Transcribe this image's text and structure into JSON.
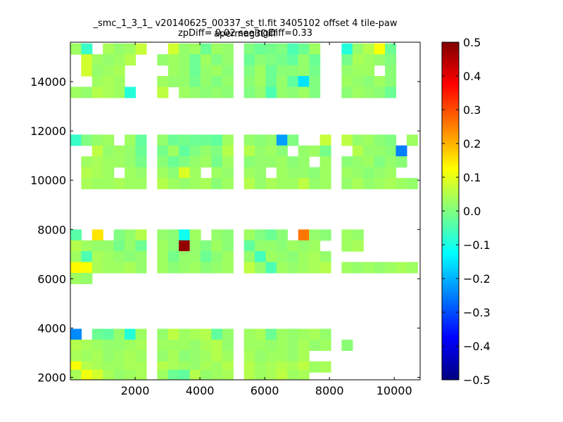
{
  "chart_data": {
    "type": "heatmap",
    "title": "_smc_1_3_1_ v20140625_00337_st_tl.fit 3405102 offset 4 tile-paw apermag3Diff",
    "subtitle": "zpDiff= 0.02 seeingDiff=0.33",
    "xlabel": "",
    "ylabel": "",
    "xlim": [
      0,
      10800
    ],
    "ylim": [
      1900,
      15600
    ],
    "xticks": [
      2000,
      4000,
      6000,
      8000,
      10000
    ],
    "yticks": [
      2000,
      4000,
      6000,
      8000,
      10000,
      12000,
      14000
    ],
    "cell_size": [
      335,
      440
    ],
    "colormap": "jet",
    "colorbar": {
      "range": [
        -0.5,
        0.5
      ],
      "ticks": [
        "0.5",
        "0.4",
        "0.3",
        "0.2",
        "0.1",
        "0.0",
        "−0.1",
        "−0.2",
        "−0.3",
        "−0.4",
        "−0.5"
      ],
      "tick_values": [
        0.5,
        0.4,
        0.3,
        0.2,
        0.1,
        0.0,
        -0.1,
        -0.2,
        -0.3,
        -0.4,
        -0.5
      ]
    },
    "column_centers": [
      167,
      502,
      837,
      1172,
      1507,
      1842,
      2177,
      2847,
      3182,
      3517,
      3852,
      4187,
      4522,
      4857,
      5527,
      5862,
      6197,
      6532,
      6867,
      7202,
      7537,
      7872,
      8542,
      8877,
      9212,
      9547,
      9882,
      10217,
      10552
    ],
    "band_row_centers": [
      [
        15330,
        14890,
        14450,
        14010,
        13570
      ],
      [
        11630,
        11190,
        10750,
        10310,
        9870
      ],
      [
        7780,
        7340,
        6900,
        6460,
        6020,
        5580
      ],
      [
        3750,
        3310,
        2870,
        2430,
        2090
      ]
    ],
    "bands": [
      [
        [
          0.03,
          -0.07,
          null,
          0.04,
          0.02,
          0.03,
          0.07,
          null,
          0.08,
          0.02,
          0.03,
          -0.02,
          0.03,
          0.02,
          0.0,
          -0.02,
          -0.01,
          0.0,
          -0.05,
          -0.02,
          0.03,
          null,
          -0.09,
          0.02,
          0.05,
          0.12,
          -0.02
        ],
        [
          null,
          0.08,
          0.03,
          0.02,
          0.03,
          0.05,
          null,
          0.02,
          0.03,
          0.02,
          -0.02,
          0.03,
          0.0,
          0.02,
          -0.02,
          0.01,
          0.0,
          -0.01,
          -0.03,
          0.02,
          -0.02,
          null,
          -0.01,
          0.04,
          0.03,
          0.02,
          0.0
        ],
        [
          null,
          0.08,
          0.02,
          0.03,
          0.04,
          null,
          null,
          null,
          0.03,
          0.02,
          -0.02,
          0.02,
          0.03,
          0.01,
          0.0,
          0.03,
          -0.02,
          0.01,
          0.01,
          0.02,
          -0.01,
          null,
          0.02,
          0.03,
          0.03,
          null,
          0.01
        ],
        [
          null,
          null,
          0.03,
          0.04,
          0.03,
          null,
          null,
          0.03,
          0.02,
          0.02,
          -0.01,
          0.02,
          0.0,
          0.02,
          0.01,
          0.03,
          -0.02,
          0.02,
          -0.03,
          -0.15,
          0.0,
          null,
          0.03,
          0.02,
          0.01,
          0.03,
          0.01
        ],
        [
          0.03,
          0.02,
          0.05,
          0.04,
          0.03,
          -0.09,
          null,
          0.06,
          null,
          0.03,
          0.02,
          0.01,
          0.02,
          0.01,
          0.0,
          0.02,
          -0.05,
          0.02,
          0.01,
          0.03,
          0.0,
          null,
          0.01,
          0.03,
          0.02,
          0.01,
          -0.02
        ]
      ],
      [
        [
          -0.07,
          0.0,
          0.02,
          0.03,
          null,
          0.03,
          -0.03,
          0.02,
          -0.02,
          -0.01,
          -0.02,
          -0.02,
          -0.03,
          0.03,
          0.02,
          0.01,
          0.02,
          -0.22,
          0.0,
          null,
          null,
          0.07,
          0.06,
          0.02,
          0.03,
          0.01,
          0.0,
          null,
          0.03
        ],
        [
          null,
          null,
          0.06,
          0.02,
          0.03,
          0.02,
          -0.02,
          -0.01,
          0.03,
          -0.03,
          0.0,
          0.02,
          0.0,
          0.05,
          0.05,
          0.02,
          0.03,
          0.01,
          null,
          0.02,
          0.03,
          -0.01,
          null,
          0.05,
          0.02,
          0.02,
          0.01,
          -0.25
        ],
        [
          null,
          0.03,
          0.04,
          0.03,
          0.03,
          0.02,
          -0.01,
          0.01,
          -0.02,
          0.0,
          0.02,
          0.03,
          -0.01,
          0.03,
          0.01,
          0.02,
          0.02,
          0.03,
          0.01,
          0.02,
          null,
          0.03,
          0.01,
          0.02,
          0.03,
          0.0,
          0.02,
          0.01
        ],
        [
          null,
          0.05,
          0.04,
          0.03,
          null,
          0.03,
          0.02,
          0.03,
          0.01,
          0.09,
          0.03,
          null,
          0.03,
          0.02,
          0.03,
          0.02,
          null,
          0.03,
          0.02,
          0.02,
          0.01,
          0.03,
          0.03,
          0.02,
          0.01,
          0.02,
          0.03
        ],
        [
          null,
          0.04,
          0.03,
          0.03,
          0.04,
          0.03,
          0.03,
          0.05,
          0.03,
          0.02,
          0.03,
          0.04,
          0.01,
          0.03,
          0.05,
          0.02,
          0.04,
          0.03,
          0.03,
          0.06,
          0.02,
          0.03,
          0.02,
          0.04,
          0.02,
          0.03,
          0.04,
          0.03,
          0.02
        ]
      ],
      [
        [
          -0.04,
          null,
          0.15,
          null,
          0.0,
          0.02,
          0.05,
          0.02,
          0.01,
          -0.11,
          0.03,
          null,
          0.02,
          0.01,
          0.03,
          0.0,
          -0.02,
          0.01,
          null,
          0.26,
          0.02,
          0.01,
          0.03,
          0.02
        ],
        [
          0.05,
          0.03,
          0.02,
          0.02,
          -0.01,
          0.02,
          -0.02,
          0.03,
          0.01,
          0.48,
          0.02,
          0.0,
          0.03,
          0.01,
          -0.03,
          0.02,
          0.02,
          0.01,
          0.03,
          0.02,
          0.03,
          null,
          0.03,
          0.04
        ],
        [
          0.03,
          -0.05,
          0.04,
          0.03,
          0.02,
          0.01,
          0.02,
          0.03,
          -0.01,
          0.02,
          0.02,
          -0.02,
          0.01,
          0.03,
          0.02,
          -0.06,
          0.03,
          0.02,
          0.01,
          0.03,
          0.04,
          0.02
        ],
        [
          0.13,
          0.12,
          0.04,
          0.03,
          0.03,
          0.04,
          0.02,
          0.03,
          0.01,
          0.02,
          0.03,
          0.01,
          0.02,
          0.03,
          0.06,
          0.02,
          -0.05,
          0.03,
          0.02,
          0.03,
          0.04,
          0.05,
          0.03,
          0.02,
          0.03,
          0.02,
          0.03,
          0.04,
          0.03
        ],
        [
          0.03,
          0.02
        ]
      ],
      [
        [
          -0.24,
          null,
          -0.02,
          -0.03,
          0.02,
          -0.09,
          0.03,
          0.02,
          0.06,
          0.03,
          0.04,
          0.05,
          -0.03,
          0.02,
          0.03,
          0.04,
          -0.02,
          0.03,
          0.02,
          0.03,
          0.04,
          0.02
        ],
        [
          0.05,
          0.04,
          0.03,
          0.02,
          0.02,
          0.03,
          0.04,
          0.03,
          0.03,
          0.03,
          0.02,
          0.04,
          0.05,
          0.02,
          0.03,
          0.03,
          0.02,
          0.03,
          0.02,
          0.04,
          0.02,
          0.03,
          0.01
        ],
        [
          0.04,
          0.03,
          0.04,
          0.02,
          0.03,
          0.04,
          0.03,
          0.02,
          0.04,
          0.01,
          0.02,
          0.03,
          0.05,
          0.03,
          0.04,
          0.02,
          0.03,
          0.03,
          0.02,
          0.04
        ],
        [
          0.12,
          0.05,
          0.04,
          0.03,
          0.03,
          0.04,
          0.04,
          0.05,
          0.04,
          0.03,
          0.02,
          0.04,
          0.03,
          0.05,
          0.05,
          0.03,
          0.04,
          0.05,
          0.04,
          0.06,
          0.03,
          0.04
        ],
        [
          0.04,
          0.11,
          0.08,
          0.04,
          0.02,
          0.03,
          0.04,
          0.03,
          -0.02,
          -0.03,
          0.05,
          0.02,
          0.03,
          0.04,
          0.05,
          0.03,
          0.04,
          0.06,
          0.03,
          0.04
        ]
      ]
    ]
  }
}
